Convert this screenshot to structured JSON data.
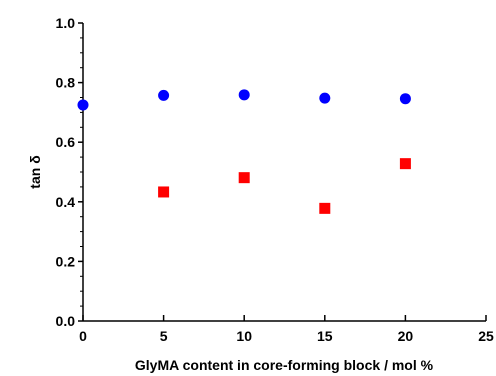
{
  "chart_data": {
    "type": "scatter",
    "title": "",
    "xlabel": "GlyMA content in core-forming block / mol %",
    "ylabel": "tan δ",
    "xlim": [
      0,
      25
    ],
    "ylim": [
      0.0,
      1.0
    ],
    "x_ticks": [
      "0",
      "5",
      "10",
      "15",
      "20",
      "25"
    ],
    "y_ticks": [
      "0.0",
      "0.2",
      "0.4",
      "0.6",
      "0.8",
      "1.0"
    ],
    "grid": false,
    "legend": "none",
    "series": [
      {
        "marker": "circle",
        "color": "#0000ff",
        "x": [
          0,
          5,
          10,
          15,
          20
        ],
        "y": [
          0.725,
          0.757,
          0.759,
          0.748,
          0.746
        ]
      },
      {
        "marker": "square",
        "color": "#ff0000",
        "x": [
          5,
          10,
          15,
          20
        ],
        "y": [
          0.433,
          0.481,
          0.378,
          0.528
        ]
      }
    ]
  }
}
